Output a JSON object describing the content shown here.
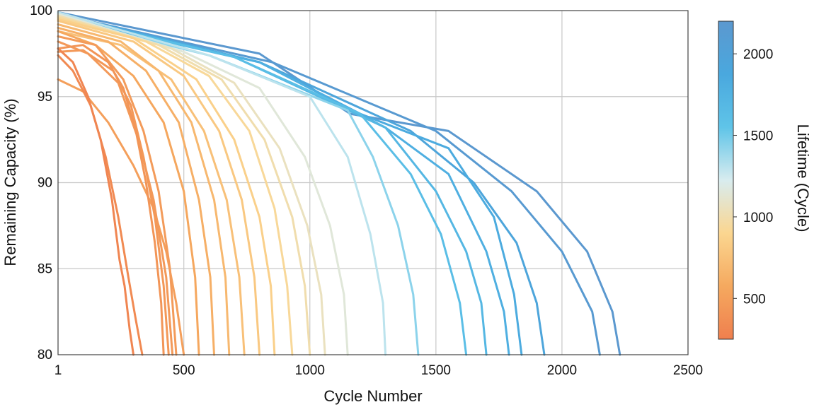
{
  "chart_data": {
    "type": "line",
    "title": "",
    "xlabel": "Cycle Number",
    "ylabel": "Remaining Capacity (%)",
    "xlim": [
      1,
      2500
    ],
    "ylim": [
      80,
      100
    ],
    "x_ticks": [
      1,
      500,
      1000,
      1500,
      2000,
      2500
    ],
    "x_tick_labels": [
      "1",
      "500",
      "1000",
      "1500",
      "2000",
      "2500"
    ],
    "y_ticks": [
      80,
      85,
      90,
      95,
      100
    ],
    "y_tick_labels": [
      "80",
      "85",
      "90",
      "95",
      "100"
    ],
    "grid": true,
    "colorbar": {
      "label": "Lifetime (Cycle)",
      "range": [
        250,
        2200
      ],
      "ticks": [
        500,
        1000,
        1500,
        2000
      ],
      "tick_labels": [
        "500",
        "1000",
        "1500",
        "2000"
      ],
      "colors": [
        "#ef7f4e",
        "#f5a95f",
        "#fbd690",
        "#d8ecef",
        "#5fc4e8",
        "#4aa8de",
        "#5b98cf"
      ]
    },
    "series": [
      {
        "lifetime": 300,
        "values": [
          [
            1,
            97.8
          ],
          [
            60,
            97.0
          ],
          [
            120,
            95.0
          ],
          [
            170,
            92.5
          ],
          [
            215,
            89.0
          ],
          [
            245,
            85.5
          ],
          [
            265,
            84.0
          ],
          [
            285,
            81.5
          ],
          [
            300,
            80
          ]
        ]
      },
      {
        "lifetime": 335,
        "values": [
          [
            1,
            97.4
          ],
          [
            60,
            96.5
          ],
          [
            130,
            94.5
          ],
          [
            190,
            91.5
          ],
          [
            240,
            88.0
          ],
          [
            280,
            84.5
          ],
          [
            310,
            82.0
          ],
          [
            335,
            80
          ]
        ]
      },
      {
        "lifetime": 420,
        "values": [
          [
            1,
            97.8
          ],
          [
            100,
            98.0
          ],
          [
            200,
            97.0
          ],
          [
            260,
            95.5
          ],
          [
            310,
            93.0
          ],
          [
            350,
            90.0
          ],
          [
            385,
            86.5
          ],
          [
            410,
            83.0
          ],
          [
            420,
            80
          ]
        ]
      },
      {
        "lifetime": 440,
        "values": [
          [
            1,
            97.6
          ],
          [
            100,
            97.7
          ],
          [
            220,
            96.5
          ],
          [
            290,
            94.5
          ],
          [
            340,
            91.5
          ],
          [
            385,
            88.0
          ],
          [
            420,
            84.0
          ],
          [
            440,
            80
          ]
        ]
      },
      {
        "lifetime": 455,
        "values": [
          [
            1,
            98.2
          ],
          [
            120,
            97.5
          ],
          [
            240,
            95.8
          ],
          [
            320,
            92.5
          ],
          [
            380,
            89.0
          ],
          [
            430,
            84.5
          ],
          [
            455,
            80
          ]
        ]
      },
      {
        "lifetime": 470,
        "values": [
          [
            1,
            98.5
          ],
          [
            150,
            98.0
          ],
          [
            260,
            96.0
          ],
          [
            340,
            93.0
          ],
          [
            400,
            89.5
          ],
          [
            445,
            85.0
          ],
          [
            470,
            80
          ]
        ]
      },
      {
        "lifetime": 500,
        "values": [
          [
            1,
            96.0
          ],
          [
            100,
            95.3
          ],
          [
            200,
            93.5
          ],
          [
            300,
            91.0
          ],
          [
            380,
            88.5
          ],
          [
            430,
            86.0
          ],
          [
            470,
            83.0
          ],
          [
            500,
            80
          ]
        ]
      },
      {
        "lifetime": 560,
        "values": [
          [
            1,
            98.8
          ],
          [
            150,
            98.0
          ],
          [
            300,
            96.2
          ],
          [
            420,
            93.5
          ],
          [
            500,
            89.5
          ],
          [
            545,
            84.5
          ],
          [
            560,
            80
          ]
        ]
      },
      {
        "lifetime": 620,
        "values": [
          [
            1,
            99.0
          ],
          [
            200,
            98.2
          ],
          [
            350,
            96.5
          ],
          [
            480,
            93.5
          ],
          [
            560,
            89.0
          ],
          [
            605,
            84.5
          ],
          [
            620,
            80
          ]
        ]
      },
      {
        "lifetime": 680,
        "values": [
          [
            1,
            99.2
          ],
          [
            250,
            98.2
          ],
          [
            400,
            96.5
          ],
          [
            530,
            93.5
          ],
          [
            620,
            89.0
          ],
          [
            665,
            84.5
          ],
          [
            680,
            80
          ]
        ]
      },
      {
        "lifetime": 740,
        "values": [
          [
            1,
            98.8
          ],
          [
            250,
            98.0
          ],
          [
            450,
            96.0
          ],
          [
            580,
            93.0
          ],
          [
            670,
            89.0
          ],
          [
            720,
            84.5
          ],
          [
            740,
            80
          ]
        ]
      },
      {
        "lifetime": 800,
        "values": [
          [
            1,
            99.4
          ],
          [
            300,
            98.2
          ],
          [
            500,
            96.2
          ],
          [
            640,
            93.0
          ],
          [
            730,
            89.0
          ],
          [
            780,
            84.5
          ],
          [
            800,
            80
          ]
        ]
      },
      {
        "lifetime": 860,
        "values": [
          [
            1,
            99.5
          ],
          [
            300,
            98.4
          ],
          [
            550,
            96.0
          ],
          [
            700,
            92.5
          ],
          [
            800,
            88.0
          ],
          [
            845,
            84.0
          ],
          [
            860,
            80
          ]
        ]
      },
      {
        "lifetime": 930,
        "values": [
          [
            1,
            99.6
          ],
          [
            350,
            98.2
          ],
          [
            600,
            96.2
          ],
          [
            760,
            93.0
          ],
          [
            860,
            88.5
          ],
          [
            910,
            84.0
          ],
          [
            930,
            80
          ]
        ]
      },
      {
        "lifetime": 1000,
        "values": [
          [
            1,
            99.7
          ],
          [
            400,
            98.0
          ],
          [
            650,
            96.0
          ],
          [
            820,
            92.5
          ],
          [
            930,
            88.0
          ],
          [
            980,
            84.0
          ],
          [
            1000,
            80
          ]
        ]
      },
      {
        "lifetime": 1060,
        "values": [
          [
            1,
            99.7
          ],
          [
            450,
            97.8
          ],
          [
            700,
            95.8
          ],
          [
            880,
            92.0
          ],
          [
            990,
            87.5
          ],
          [
            1045,
            83.5
          ],
          [
            1060,
            80
          ]
        ]
      },
      {
        "lifetime": 1150,
        "values": [
          [
            1,
            99.8
          ],
          [
            500,
            97.6
          ],
          [
            800,
            95.5
          ],
          [
            980,
            91.5
          ],
          [
            1080,
            87.5
          ],
          [
            1135,
            83.5
          ],
          [
            1150,
            80
          ]
        ]
      },
      {
        "lifetime": 1300,
        "values": [
          [
            1,
            99.9
          ],
          [
            600,
            97.4
          ],
          [
            1000,
            95.0
          ],
          [
            1150,
            91.5
          ],
          [
            1240,
            87.0
          ],
          [
            1290,
            83.0
          ],
          [
            1300,
            80
          ]
        ]
      },
      {
        "lifetime": 1430,
        "values": [
          [
            1,
            99.6
          ],
          [
            600,
            97.4
          ],
          [
            1150,
            94.2
          ],
          [
            1250,
            91.5
          ],
          [
            1350,
            87.5
          ],
          [
            1410,
            83.5
          ],
          [
            1430,
            80
          ]
        ]
      },
      {
        "lifetime": 1620,
        "values": [
          [
            1,
            99.7
          ],
          [
            700,
            97.3
          ],
          [
            1200,
            94.0
          ],
          [
            1400,
            90.5
          ],
          [
            1520,
            87.0
          ],
          [
            1595,
            83.0
          ],
          [
            1620,
            80
          ]
        ]
      },
      {
        "lifetime": 1700,
        "values": [
          [
            1,
            99.6
          ],
          [
            700,
            97.3
          ],
          [
            1300,
            93.2
          ],
          [
            1500,
            89.5
          ],
          [
            1620,
            86.0
          ],
          [
            1680,
            83.0
          ],
          [
            1700,
            80
          ]
        ]
      },
      {
        "lifetime": 1790,
        "values": [
          [
            1,
            99.6
          ],
          [
            800,
            97.0
          ],
          [
            1300,
            93.2
          ],
          [
            1550,
            90.5
          ],
          [
            1700,
            86.0
          ],
          [
            1770,
            82.5
          ],
          [
            1790,
            80
          ]
        ]
      },
      {
        "lifetime": 1840,
        "values": [
          [
            1,
            99.8
          ],
          [
            800,
            97.0
          ],
          [
            1200,
            94.0
          ],
          [
            1550,
            92.0
          ],
          [
            1730,
            88.0
          ],
          [
            1810,
            83.5
          ],
          [
            1840,
            80
          ]
        ]
      },
      {
        "lifetime": 1930,
        "values": [
          [
            1,
            99.7
          ],
          [
            800,
            97.0
          ],
          [
            1400,
            93.0
          ],
          [
            1650,
            90.0
          ],
          [
            1820,
            86.5
          ],
          [
            1900,
            83.0
          ],
          [
            1930,
            80
          ]
        ]
      },
      {
        "lifetime": 2150,
        "values": [
          [
            1,
            99.8
          ],
          [
            850,
            97.0
          ],
          [
            1500,
            93.0
          ],
          [
            1800,
            89.5
          ],
          [
            2000,
            86.0
          ],
          [
            2120,
            82.5
          ],
          [
            2150,
            80
          ]
        ]
      },
      {
        "lifetime": 2230,
        "values": [
          [
            1,
            99.9
          ],
          [
            800,
            97.5
          ],
          [
            1160,
            94.0
          ],
          [
            1550,
            93.0
          ],
          [
            1900,
            89.5
          ],
          [
            2100,
            86.0
          ],
          [
            2200,
            82.5
          ],
          [
            2230,
            80
          ]
        ]
      }
    ]
  }
}
